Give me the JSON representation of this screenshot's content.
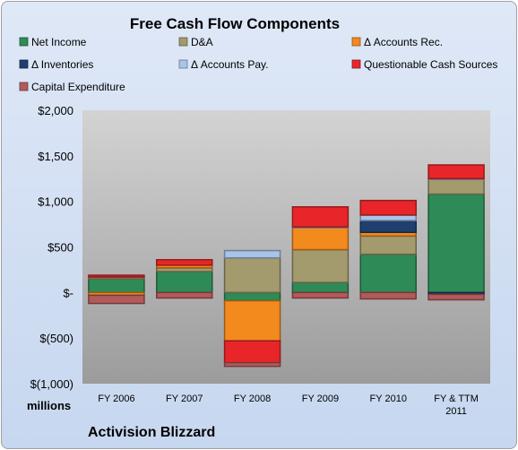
{
  "chart_data": {
    "type": "bar",
    "stacked": true,
    "title": "Free Cash Flow Components",
    "categories": [
      "FY 2006",
      "FY 2007",
      "FY 2008",
      "FY 2009",
      "FY 2010",
      "FY & TTM 2011"
    ],
    "series": [
      {
        "name": "Net Income",
        "color": "#2e8b57",
        "values": [
          150,
          230,
          -90,
          110,
          420,
          1080
        ]
      },
      {
        "name": "D&A",
        "color": "#a39a6e",
        "values": [
          20,
          40,
          380,
          360,
          200,
          160
        ]
      },
      {
        "name": "Δ Accounts Rec.",
        "color": "#f28a1e",
        "values": [
          -30,
          30,
          -440,
          240,
          40,
          0
        ]
      },
      {
        "name": "Δ Inventories",
        "color": "#1f3f6e",
        "values": [
          0,
          0,
          0,
          0,
          130,
          -20
        ]
      },
      {
        "name": "Δ Accounts Pay.",
        "color": "#a9c4e8",
        "values": [
          0,
          0,
          80,
          10,
          60,
          10
        ]
      },
      {
        "name": "Questionable Cash Sources",
        "color": "#e8262a",
        "values": [
          20,
          60,
          -240,
          220,
          160,
          150
        ]
      },
      {
        "name": "Capital Expenditure",
        "color": "#b35a5a",
        "values": [
          -90,
          -60,
          -40,
          -60,
          -70,
          -60
        ]
      }
    ],
    "yticks": [
      -1000,
      -500,
      0,
      500,
      1000,
      1500,
      2000
    ],
    "ytick_labels": [
      "$(1,000)",
      "$(500)",
      "$-",
      "$500",
      "$1,000",
      "$1,500",
      "$2,000"
    ],
    "ylim": [
      -1000,
      2000
    ],
    "units_label": "millions",
    "legend_position": "top",
    "grid": false
  },
  "company_label": "Activision Blizzard"
}
